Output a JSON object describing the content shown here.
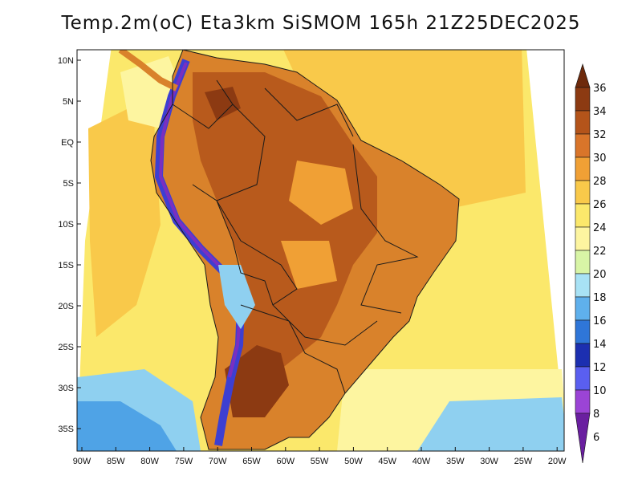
{
  "title": "Temp.2m(oC) Eta3km SiSMOM 165h 21Z25DEC2025",
  "map": {
    "variable": "Temp.2m",
    "units": "oC",
    "lat_labels": [
      "10N",
      "5N",
      "EQ",
      "5S",
      "10S",
      "15S",
      "20S",
      "25S",
      "30S",
      "35S"
    ],
    "lon_labels": [
      "90W",
      "85W",
      "80W",
      "75W",
      "70W",
      "65W",
      "60W",
      "55W",
      "50W",
      "45W",
      "40W",
      "35W",
      "30W",
      "25W",
      "20W"
    ],
    "colors": {
      "ocean_warm": "#f9c94a",
      "ocean_mild": "#fbe86b",
      "ocean_cool": "#fdf5a0",
      "ocean_cold": "#8fd0f0",
      "ocean_colder": "#4fa3e6",
      "land_hot": "#d9822b",
      "land_hotter": "#b85a1c",
      "land_extreme": "#8c3a12",
      "andes_cold": "#3d3fd1",
      "andes_colder": "#7a2fc0",
      "border": "#1a1a1a"
    }
  },
  "colorbar": {
    "min_label": "6",
    "max_label": "36",
    "levels": [
      {
        "label": "36",
        "color": "#6e2a0c"
      },
      {
        "label": "34",
        "color": "#8c3a12"
      },
      {
        "label": "32",
        "color": "#b4541a"
      },
      {
        "label": "30",
        "color": "#d9752a"
      },
      {
        "label": "28",
        "color": "#f0a035"
      },
      {
        "label": "26",
        "color": "#f9c94a"
      },
      {
        "label": "24",
        "color": "#fbe86b"
      },
      {
        "label": "22",
        "color": "#fdf5a0"
      },
      {
        "label": "20",
        "color": "#d8f5a6"
      },
      {
        "label": "18",
        "color": "#a8e2f5"
      },
      {
        "label": "16",
        "color": "#5fb0ec"
      },
      {
        "label": "14",
        "color": "#2f76d8"
      },
      {
        "label": "12",
        "color": "#1c2fb0"
      },
      {
        "label": "10",
        "color": "#5a5ff0"
      },
      {
        "label": "8",
        "color": "#9b44d6"
      },
      {
        "label": "6",
        "color": "#6a1fa0"
      }
    ]
  }
}
